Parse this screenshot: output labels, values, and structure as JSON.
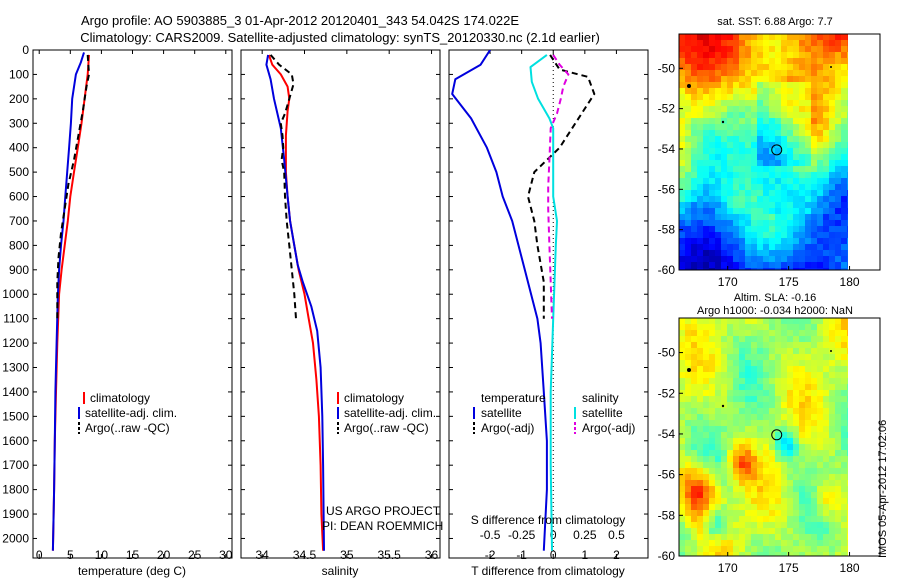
{
  "title": {
    "line1": "Argo profile: AO 5903885_3 01-Apr-2012 20120401_343 54.042S 174.022E",
    "line2": "Climatology: CARS2009. Satellite-adjusted climatology: synTS_20120330.nc (2.1d earlier)"
  },
  "colors": {
    "red": "#ff0000",
    "blue": "#0000dd",
    "cyan": "#00e0e0",
    "magenta": "#e000e0",
    "black": "#000000"
  },
  "chart_data": [
    {
      "id": "temperature",
      "type": "line",
      "xlabel": "temperature (deg C)",
      "xlim": [
        -1,
        31
      ],
      "ylim": [
        0,
        2080
      ],
      "xticks": [
        "0",
        "5",
        "10",
        "15",
        "20",
        "25",
        "30"
      ],
      "xtick_values": [
        0,
        5,
        10,
        15,
        20,
        25,
        30
      ],
      "yticks": [
        "0",
        "100",
        "200",
        "300",
        "400",
        "500",
        "600",
        "700",
        "800",
        "900",
        "1000",
        "1100",
        "1200",
        "1300",
        "1400",
        "1500",
        "1600",
        "1700",
        "1800",
        "1900",
        "2000"
      ],
      "legend": [
        "climatology",
        "satellite-adj. clim.",
        "Argo(..raw -QC)"
      ],
      "series": [
        {
          "name": "climatology",
          "color": "red",
          "dash": false,
          "points": [
            [
              8.0,
              20
            ],
            [
              7.8,
              100
            ],
            [
              7.3,
              200
            ],
            [
              6.8,
              300
            ],
            [
              6.2,
              400
            ],
            [
              5.6,
              500
            ],
            [
              5.0,
              600
            ],
            [
              4.6,
              700
            ],
            [
              4.1,
              800
            ],
            [
              3.6,
              900
            ],
            [
              3.2,
              1000
            ],
            [
              2.9,
              1200
            ],
            [
              2.7,
              1400
            ],
            [
              2.5,
              1600
            ],
            [
              2.4,
              1800
            ],
            [
              2.2,
              2050
            ]
          ]
        },
        {
          "name": "satellite-adj. clim.",
          "color": "blue",
          "dash": false,
          "points": [
            [
              7.2,
              10
            ],
            [
              6.7,
              50
            ],
            [
              5.9,
              100
            ],
            [
              5.3,
              200
            ],
            [
              5.1,
              300
            ],
            [
              4.8,
              400
            ],
            [
              4.5,
              500
            ],
            [
              4.2,
              600
            ],
            [
              3.9,
              700
            ],
            [
              3.5,
              800
            ],
            [
              3.2,
              900
            ],
            [
              3.0,
              1000
            ],
            [
              2.8,
              1200
            ],
            [
              2.6,
              1400
            ],
            [
              2.5,
              1600
            ],
            [
              2.4,
              1800
            ],
            [
              2.2,
              2050
            ]
          ]
        },
        {
          "name": "Argo(..raw -QC)",
          "color": "black",
          "dash": true,
          "points": [
            [
              7.8,
              20
            ],
            [
              8.0,
              100
            ],
            [
              7.6,
              150
            ],
            [
              7.0,
              250
            ],
            [
              6.3,
              350
            ],
            [
              5.6,
              450
            ],
            [
              4.7,
              550
            ],
            [
              4.1,
              650
            ],
            [
              3.5,
              750
            ],
            [
              3.1,
              850
            ],
            [
              2.9,
              950
            ],
            [
              2.9,
              1100
            ]
          ]
        }
      ]
    },
    {
      "id": "salinity",
      "type": "line",
      "xlabel": "salinity",
      "xlim": [
        33.75,
        36.1
      ],
      "ylim": [
        0,
        2080
      ],
      "xticks": [
        "34",
        "34.5",
        "35",
        "35.5",
        "36"
      ],
      "xtick_values": [
        34,
        34.5,
        35,
        35.5,
        36
      ],
      "legend": [
        "climatology",
        "satellite-adj. clim.",
        "Argo(..raw -QC)"
      ],
      "annotation": [
        "US ARGO PROJECT",
        "PI: DEAN ROEMMICH"
      ],
      "series": [
        {
          "name": "climatology",
          "color": "red",
          "dash": false,
          "points": [
            [
              34.08,
              20
            ],
            [
              34.12,
              60
            ],
            [
              34.22,
              100
            ],
            [
              34.3,
              150
            ],
            [
              34.32,
              200
            ],
            [
              34.3,
              250
            ],
            [
              34.28,
              350
            ],
            [
              34.28,
              500
            ],
            [
              34.3,
              600
            ],
            [
              34.33,
              700
            ],
            [
              34.38,
              800
            ],
            [
              34.43,
              900
            ],
            [
              34.5,
              1000
            ],
            [
              34.55,
              1100
            ],
            [
              34.6,
              1200
            ],
            [
              34.64,
              1350
            ],
            [
              34.67,
              1500
            ],
            [
              34.69,
              1700
            ],
            [
              34.7,
              1900
            ],
            [
              34.72,
              2050
            ]
          ]
        },
        {
          "name": "satellite-adj. clim.",
          "color": "blue",
          "dash": false,
          "points": [
            [
              34.07,
              20
            ],
            [
              34.05,
              60
            ],
            [
              34.1,
              120
            ],
            [
              34.14,
              200
            ],
            [
              34.18,
              260
            ],
            [
              34.22,
              320
            ],
            [
              34.26,
              450
            ],
            [
              34.3,
              600
            ],
            [
              34.33,
              700
            ],
            [
              34.38,
              800
            ],
            [
              34.42,
              880
            ],
            [
              34.48,
              950
            ],
            [
              34.58,
              1050
            ],
            [
              34.65,
              1150
            ],
            [
              34.69,
              1300
            ],
            [
              34.71,
              1500
            ],
            [
              34.72,
              1700
            ],
            [
              34.73,
              2050
            ]
          ]
        },
        {
          "name": "Argo(..raw -QC)",
          "color": "black",
          "dash": true,
          "points": [
            [
              34.1,
              20
            ],
            [
              34.2,
              60
            ],
            [
              34.35,
              100
            ],
            [
              34.37,
              140
            ],
            [
              34.32,
              200
            ],
            [
              34.27,
              260
            ],
            [
              34.22,
              300
            ],
            [
              34.24,
              350
            ],
            [
              34.25,
              400
            ],
            [
              34.23,
              450
            ],
            [
              34.26,
              500
            ],
            [
              34.27,
              600
            ],
            [
              34.29,
              700
            ],
            [
              34.32,
              800
            ],
            [
              34.35,
              900
            ],
            [
              34.38,
              1000
            ],
            [
              34.4,
              1100
            ]
          ]
        }
      ]
    },
    {
      "id": "difference",
      "type": "line",
      "xlabel": "T difference from climatology",
      "xlabel2": "S difference from climatology",
      "xlim": [
        -3.3,
        3
      ],
      "ylim": [
        0,
        2080
      ],
      "xticks": [
        "-2",
        "-1",
        "0",
        "1",
        "2"
      ],
      "xtick_values": [
        -2,
        -1,
        0,
        1,
        2
      ],
      "sticks": [
        "-0.5",
        "-0.25",
        "0",
        "0.25",
        "0.5"
      ],
      "stick_values": [
        -0.5,
        -0.25,
        0,
        0.25,
        0.5
      ],
      "s_scale": 4,
      "legend_headers": [
        "temperature",
        "salinity"
      ],
      "legend": [
        "satellite",
        "Argo(-adj)",
        "satellite",
        "Argo(-adj)"
      ],
      "series": [
        {
          "name": "T satellite",
          "color": "blue",
          "dash": false,
          "points": [
            [
              -2.0,
              0
            ],
            [
              -2.3,
              60
            ],
            [
              -3.1,
              120
            ],
            [
              -3.2,
              180
            ],
            [
              -2.6,
              280
            ],
            [
              -2.1,
              400
            ],
            [
              -1.8,
              500
            ],
            [
              -1.6,
              600
            ],
            [
              -1.3,
              700
            ],
            [
              -1.1,
              800
            ],
            [
              -0.9,
              900
            ],
            [
              -0.7,
              1000
            ],
            [
              -0.5,
              1100
            ],
            [
              -0.4,
              1200
            ],
            [
              -0.3,
              1400
            ],
            [
              -0.2,
              1600
            ],
            [
              -0.2,
              1800
            ],
            [
              -0.3,
              2050
            ]
          ]
        },
        {
          "name": "T Argo(-adj)",
          "color": "black",
          "dash": true,
          "points": [
            [
              -0.1,
              20
            ],
            [
              0.2,
              80
            ],
            [
              1.1,
              110
            ],
            [
              1.3,
              180
            ],
            [
              0.8,
              280
            ],
            [
              0.2,
              400
            ],
            [
              -0.6,
              500
            ],
            [
              -0.8,
              600
            ],
            [
              -0.6,
              700
            ],
            [
              -0.5,
              800
            ],
            [
              -0.3,
              950
            ],
            [
              -0.3,
              1100
            ]
          ]
        },
        {
          "name": "S satellite",
          "color": "cyan",
          "dash": false,
          "points": [
            [
              -0.05,
              20
            ],
            [
              -0.18,
              70
            ],
            [
              -0.17,
              130
            ],
            [
              -0.12,
              200
            ],
            [
              -0.03,
              280
            ],
            [
              0.0,
              320
            ],
            [
              0.0,
              600
            ],
            [
              0.03,
              700
            ],
            [
              0.02,
              800
            ],
            [
              0.0,
              1100
            ],
            [
              -0.02,
              1400
            ],
            [
              -0.02,
              1700
            ],
            [
              -0.01,
              2050
            ]
          ]
        },
        {
          "name": "S Argo(-adj)",
          "color": "magenta",
          "dash": true,
          "points": [
            [
              0.0,
              20
            ],
            [
              0.05,
              60
            ],
            [
              0.12,
              100
            ],
            [
              0.08,
              150
            ],
            [
              0.06,
              200
            ],
            [
              0.03,
              260
            ],
            [
              -0.02,
              320
            ],
            [
              -0.03,
              450
            ],
            [
              -0.04,
              560
            ],
            [
              -0.04,
              650
            ],
            [
              -0.03,
              800
            ],
            [
              -0.02,
              950
            ],
            [
              -0.01,
              1100
            ]
          ]
        }
      ]
    },
    {
      "id": "sst_map",
      "type": "heatmap",
      "title": "sat. SST: 6.88 Argo: 7.7",
      "xlim": [
        166,
        182.5
      ],
      "ylim": [
        -60,
        -48.3
      ],
      "xticks": [
        "170",
        "175",
        "180"
      ],
      "xtick_values": [
        170,
        175,
        180
      ],
      "yticks": [
        "-50",
        "-52",
        "-54",
        "-56",
        "-58",
        "-60"
      ],
      "ytick_values": [
        -50,
        -52,
        -54,
        -56,
        -58,
        -60
      ],
      "marker": {
        "lon": 174.022,
        "lat": -54.042
      }
    },
    {
      "id": "sla_map",
      "type": "heatmap",
      "title": "Altim. SLA: -0.16",
      "subtitle": "Argo h1000: -0.034 h2000: NaN",
      "xlim": [
        166,
        182.5
      ],
      "ylim": [
        -60,
        -48.3
      ],
      "xticks": [
        "170",
        "175",
        "180"
      ],
      "xtick_values": [
        170,
        175,
        180
      ],
      "yticks": [
        "-50",
        "-52",
        "-54",
        "-56",
        "-58",
        "-60"
      ],
      "ytick_values": [
        -50,
        -52,
        -54,
        -56,
        -58,
        -60
      ],
      "marker": {
        "lon": 174.022,
        "lat": -54.042
      }
    }
  ],
  "stamp": "IMOS 05-Apr-2012 17:02:06"
}
